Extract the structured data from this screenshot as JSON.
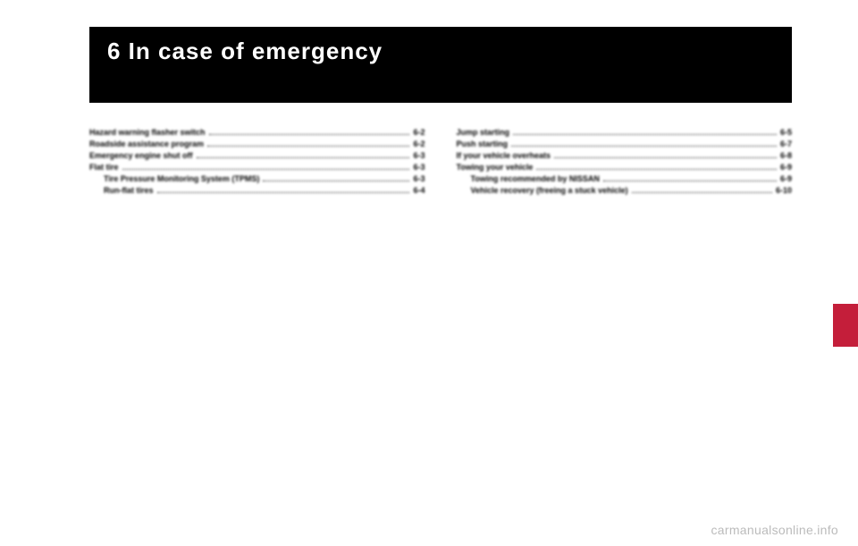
{
  "chapter": {
    "number": "6",
    "title": "In case of emergency",
    "full_title": "6 In case of emergency"
  },
  "toc": {
    "left": [
      {
        "label": "Hazard warning flasher switch",
        "page": "6-2",
        "indent": false
      },
      {
        "label": "Roadside assistance program",
        "page": "6-2",
        "indent": false
      },
      {
        "label": "Emergency engine shut off",
        "page": "6-3",
        "indent": false
      },
      {
        "label": "Flat tire",
        "page": "6-3",
        "indent": false
      },
      {
        "label": "Tire Pressure Monitoring System (TPMS)",
        "page": "6-3",
        "indent": true
      },
      {
        "label": "Run-flat tires",
        "page": "6-4",
        "indent": true
      }
    ],
    "right": [
      {
        "label": "Jump starting",
        "page": "6-5",
        "indent": false
      },
      {
        "label": "Push starting",
        "page": "6-7",
        "indent": false
      },
      {
        "label": "If your vehicle overheats",
        "page": "6-8",
        "indent": false
      },
      {
        "label": "Towing your vehicle",
        "page": "6-9",
        "indent": false
      },
      {
        "label": "Towing recommended by NISSAN",
        "page": "6-9",
        "indent": true
      },
      {
        "label": "Vehicle recovery (freeing a stuck vehicle)",
        "page": "6-10",
        "indent": true
      }
    ]
  },
  "colors": {
    "header_bg": "#000000",
    "header_text": "#ffffff",
    "tab": "#c41e3a",
    "watermark": "#bbbbbb"
  },
  "watermark": "carmanualsonline.info"
}
